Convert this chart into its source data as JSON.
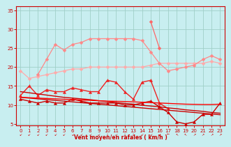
{
  "x": [
    0,
    1,
    2,
    3,
    4,
    5,
    6,
    7,
    8,
    9,
    10,
    11,
    12,
    13,
    14,
    15,
    16,
    17,
    18,
    19,
    20,
    21,
    22,
    23
  ],
  "series": [
    {
      "name": "s1_light_pink_flat",
      "color": "#ffaaaa",
      "lw": 0.9,
      "marker": "D",
      "markersize": 2.5,
      "values": [
        19.0,
        17.0,
        17.5,
        18.0,
        18.5,
        19.0,
        19.5,
        19.5,
        20.0,
        20.0,
        20.0,
        20.0,
        20.0,
        20.0,
        20.0,
        20.5,
        21.0,
        21.0,
        21.0,
        21.0,
        21.0,
        21.0,
        21.5,
        21.0
      ]
    },
    {
      "name": "s2_pink_rising",
      "color": "#ff8888",
      "lw": 0.9,
      "marker": "D",
      "markersize": 2.5,
      "values": [
        null,
        null,
        18.0,
        22.0,
        26.0,
        24.5,
        26.0,
        26.5,
        27.5,
        27.5,
        27.5,
        27.5,
        27.5,
        27.5,
        27.0,
        24.0,
        21.0,
        19.0,
        19.5,
        20.0,
        20.5,
        22.0,
        23.0,
        22.0
      ]
    },
    {
      "name": "s3_pink_spiky",
      "color": "#ff6666",
      "lw": 0.9,
      "marker": "D",
      "markersize": 2.5,
      "values": [
        null,
        null,
        null,
        null,
        null,
        null,
        null,
        null,
        null,
        null,
        null,
        null,
        null,
        null,
        null,
        32.0,
        25.0,
        null,
        null,
        null,
        null,
        null,
        null,
        null
      ]
    },
    {
      "name": "s4_red_jagged_upper",
      "color": "#ee2222",
      "lw": 1.0,
      "marker": "^",
      "markersize": 3.0,
      "values": [
        12.5,
        15.0,
        12.5,
        14.0,
        13.5,
        13.5,
        14.5,
        14.0,
        13.5,
        13.5,
        16.5,
        16.0,
        13.5,
        11.5,
        16.0,
        16.5,
        10.5,
        9.0,
        null,
        null,
        null,
        null,
        null,
        null
      ]
    },
    {
      "name": "s5_red_jagged_lower",
      "color": "#cc0000",
      "lw": 1.0,
      "marker": "^",
      "markersize": 3.0,
      "values": [
        11.5,
        11.0,
        10.5,
        11.0,
        10.5,
        10.5,
        11.5,
        11.0,
        10.5,
        10.5,
        10.5,
        10.5,
        10.0,
        10.0,
        10.5,
        11.0,
        9.5,
        null,
        null,
        null,
        null,
        null,
        null,
        null
      ]
    },
    {
      "name": "s6_red_jagged_right",
      "color": "#cc0000",
      "lw": 1.0,
      "marker": "^",
      "markersize": 3.0,
      "values": [
        null,
        null,
        null,
        null,
        null,
        null,
        null,
        null,
        null,
        null,
        null,
        null,
        null,
        null,
        null,
        null,
        9.5,
        8.0,
        5.5,
        5.0,
        5.5,
        7.5,
        7.5,
        10.5
      ]
    },
    {
      "name": "s7_linear_decline1",
      "color": "#cc0000",
      "lw": 1.0,
      "marker": null,
      "markersize": 0,
      "values": [
        13.5,
        13.2,
        12.9,
        12.6,
        12.3,
        12.0,
        11.8,
        11.6,
        11.4,
        11.1,
        10.9,
        10.6,
        10.4,
        10.2,
        9.9,
        9.7,
        9.5,
        9.2,
        9.0,
        8.7,
        8.5,
        8.3,
        8.0,
        7.8
      ]
    },
    {
      "name": "s8_linear_decline2",
      "color": "#cc0000",
      "lw": 1.0,
      "marker": null,
      "markersize": 0,
      "values": [
        12.0,
        11.8,
        11.6,
        11.4,
        11.2,
        11.0,
        10.8,
        10.6,
        10.4,
        10.2,
        10.0,
        9.8,
        9.6,
        9.4,
        9.2,
        9.0,
        8.8,
        8.6,
        8.4,
        8.2,
        8.0,
        7.8,
        7.6,
        7.4
      ]
    },
    {
      "name": "s9_red_flat_line",
      "color": "#ff0000",
      "lw": 1.0,
      "marker": null,
      "markersize": 0,
      "values": [
        12.0,
        11.9,
        11.8,
        11.7,
        11.6,
        11.5,
        11.4,
        11.3,
        11.2,
        11.1,
        11.0,
        10.95,
        10.9,
        10.8,
        10.7,
        10.6,
        10.5,
        10.4,
        10.3,
        10.2,
        10.15,
        10.1,
        10.1,
        10.2
      ]
    }
  ],
  "xlim": [
    -0.5,
    23.5
  ],
  "ylim": [
    4.5,
    36
  ],
  "yticks": [
    5,
    10,
    15,
    20,
    25,
    30,
    35
  ],
  "xticks": [
    0,
    1,
    2,
    3,
    4,
    5,
    6,
    7,
    8,
    9,
    10,
    11,
    12,
    13,
    14,
    15,
    16,
    17,
    18,
    19,
    20,
    21,
    22,
    23
  ],
  "xlabel": "Vent moyen/en rafales ( km/h )",
  "background_color": "#c8eef0",
  "grid_color": "#a0cfc8",
  "axis_color": "#cc0000",
  "tick_color": "#cc0000",
  "label_color": "#cc0000"
}
